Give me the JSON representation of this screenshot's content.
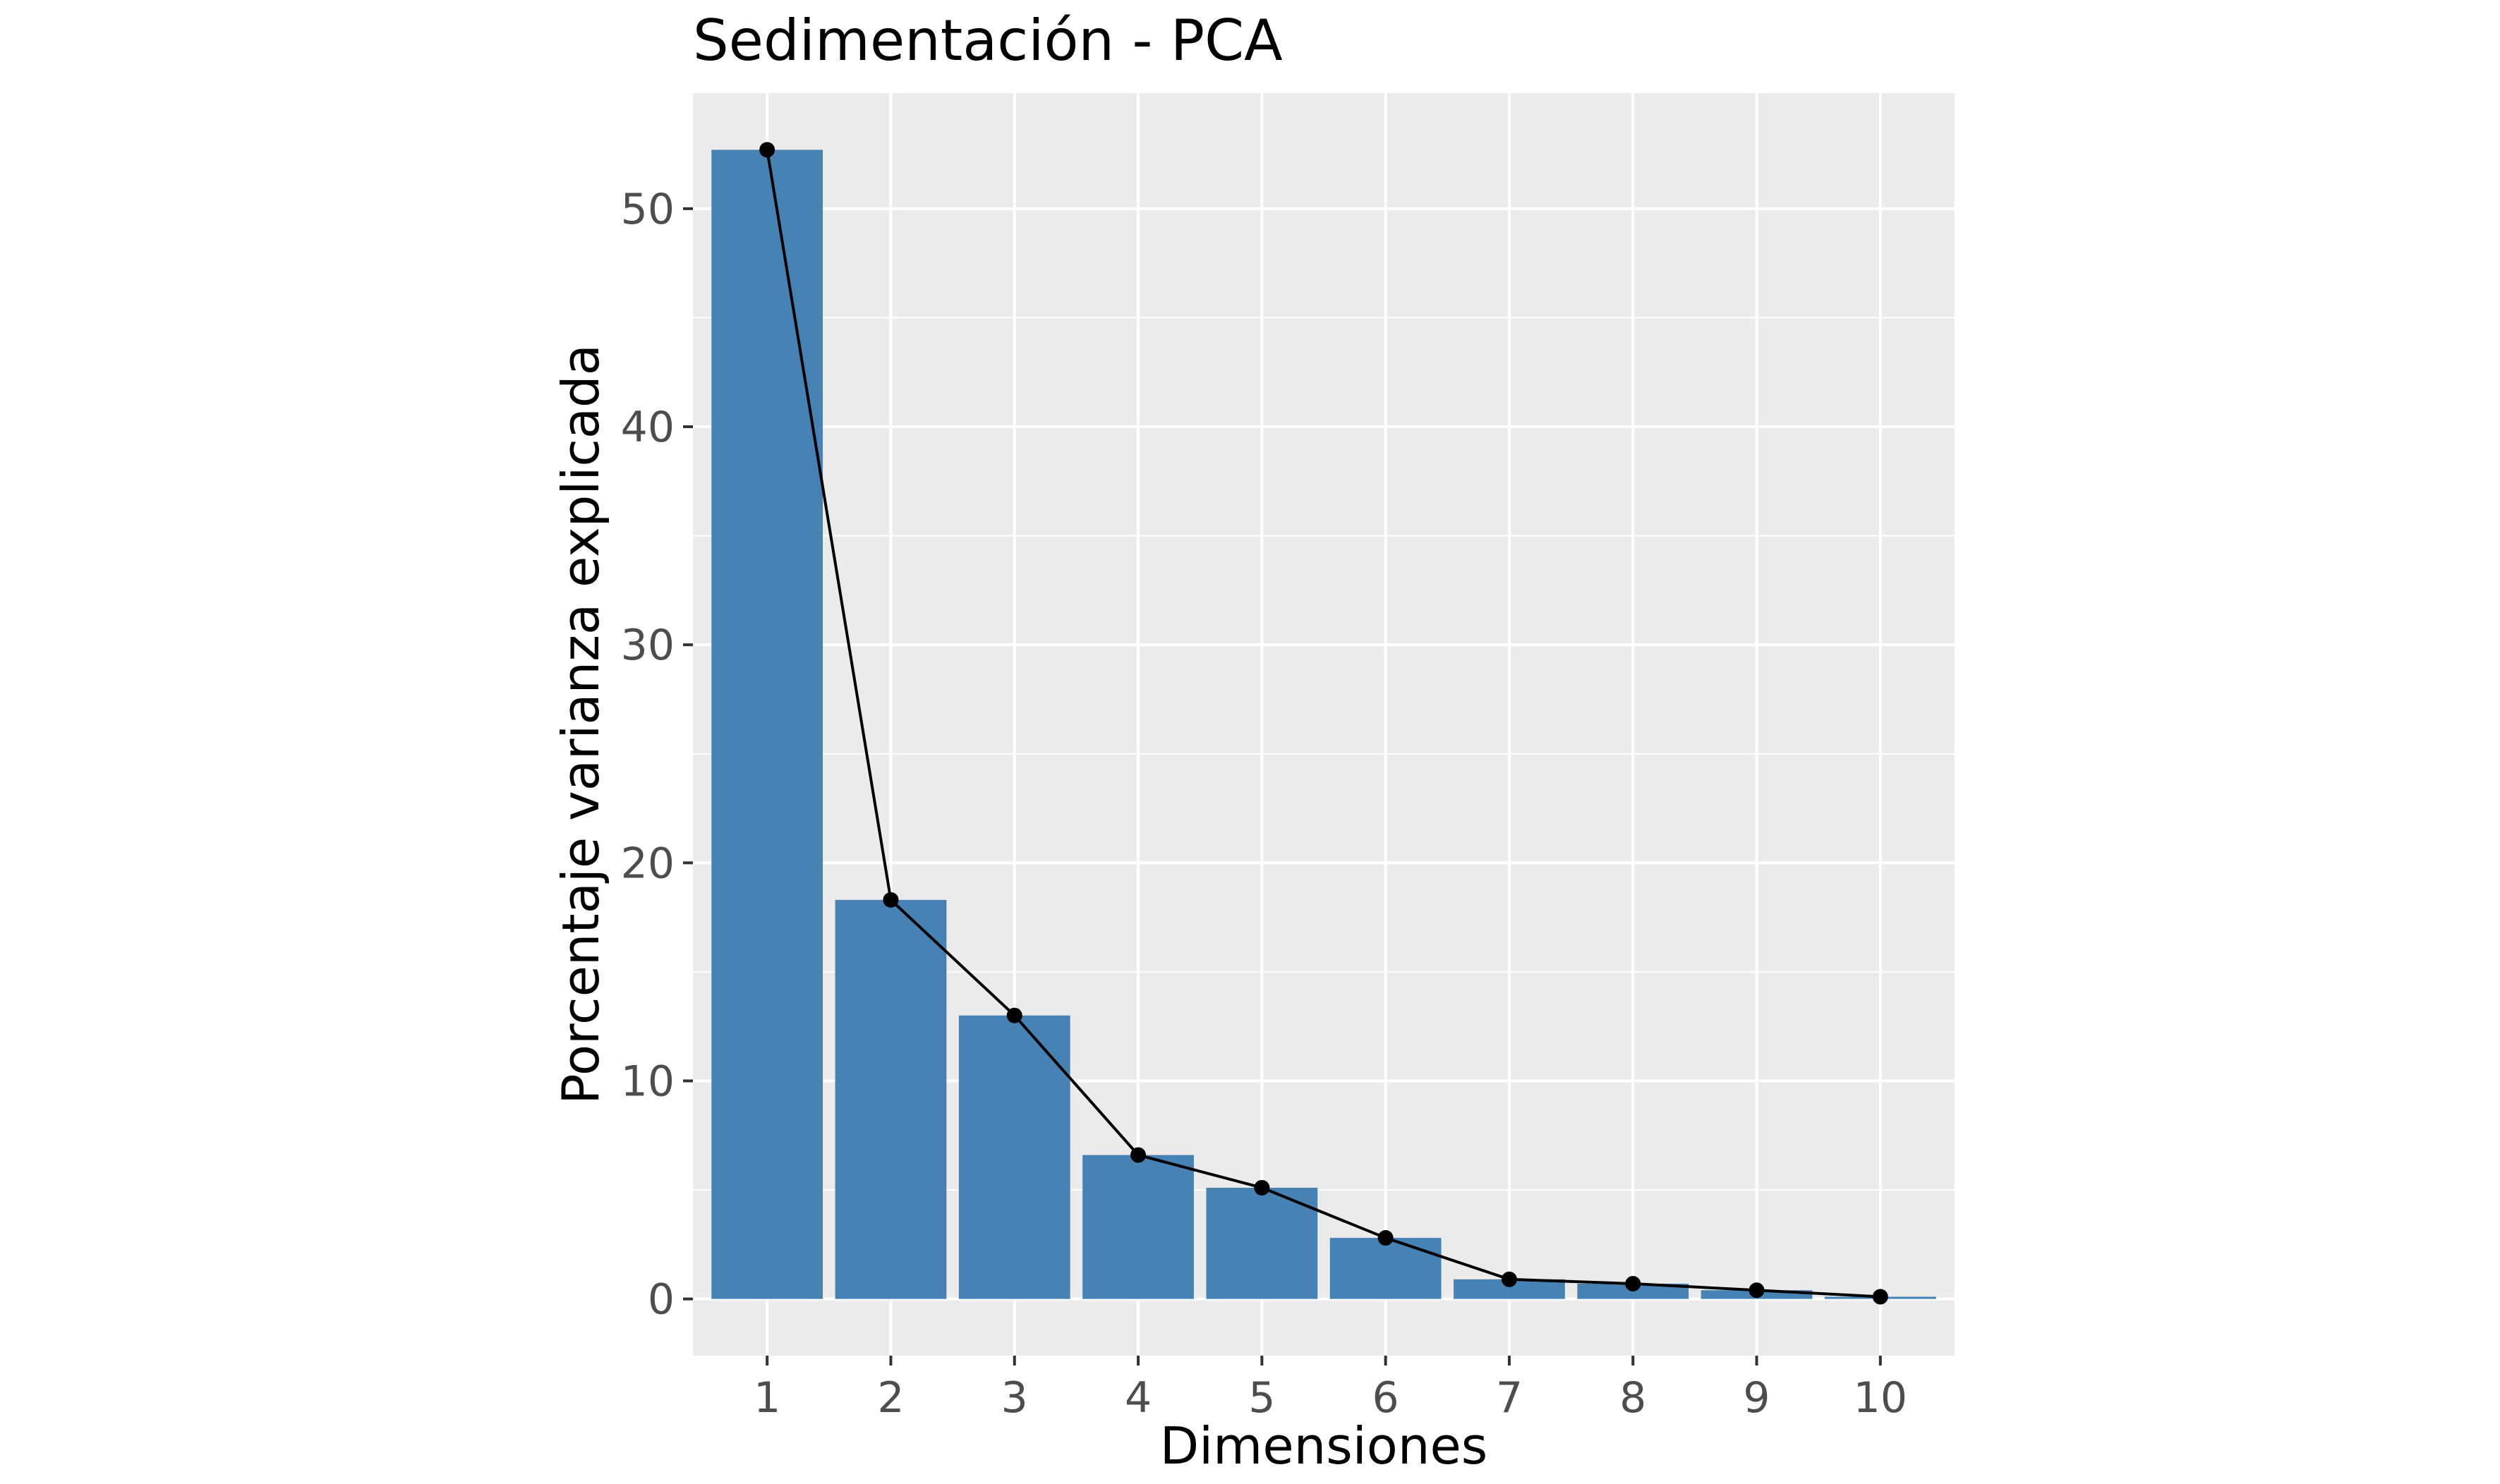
{
  "chart_data": {
    "type": "bar",
    "title": "Sedimentación - PCA",
    "xlabel": "Dimensiones",
    "ylabel": "Porcentaje varianza explicada",
    "categories": [
      "1",
      "2",
      "3",
      "4",
      "5",
      "6",
      "7",
      "8",
      "9",
      "10"
    ],
    "values": [
      52.7,
      18.3,
      13.0,
      6.6,
      5.1,
      2.8,
      0.9,
      0.7,
      0.4,
      0.1
    ],
    "line_overlay": true,
    "ylim": [
      -2.6,
      55.3
    ],
    "yticks": [
      0,
      10,
      20,
      30,
      40,
      50
    ],
    "grid": true,
    "legend": "none",
    "colors": {
      "bar": "#4682b4",
      "line": "#000000",
      "panel": "#ebebeb",
      "grid": "#ffffff"
    }
  }
}
